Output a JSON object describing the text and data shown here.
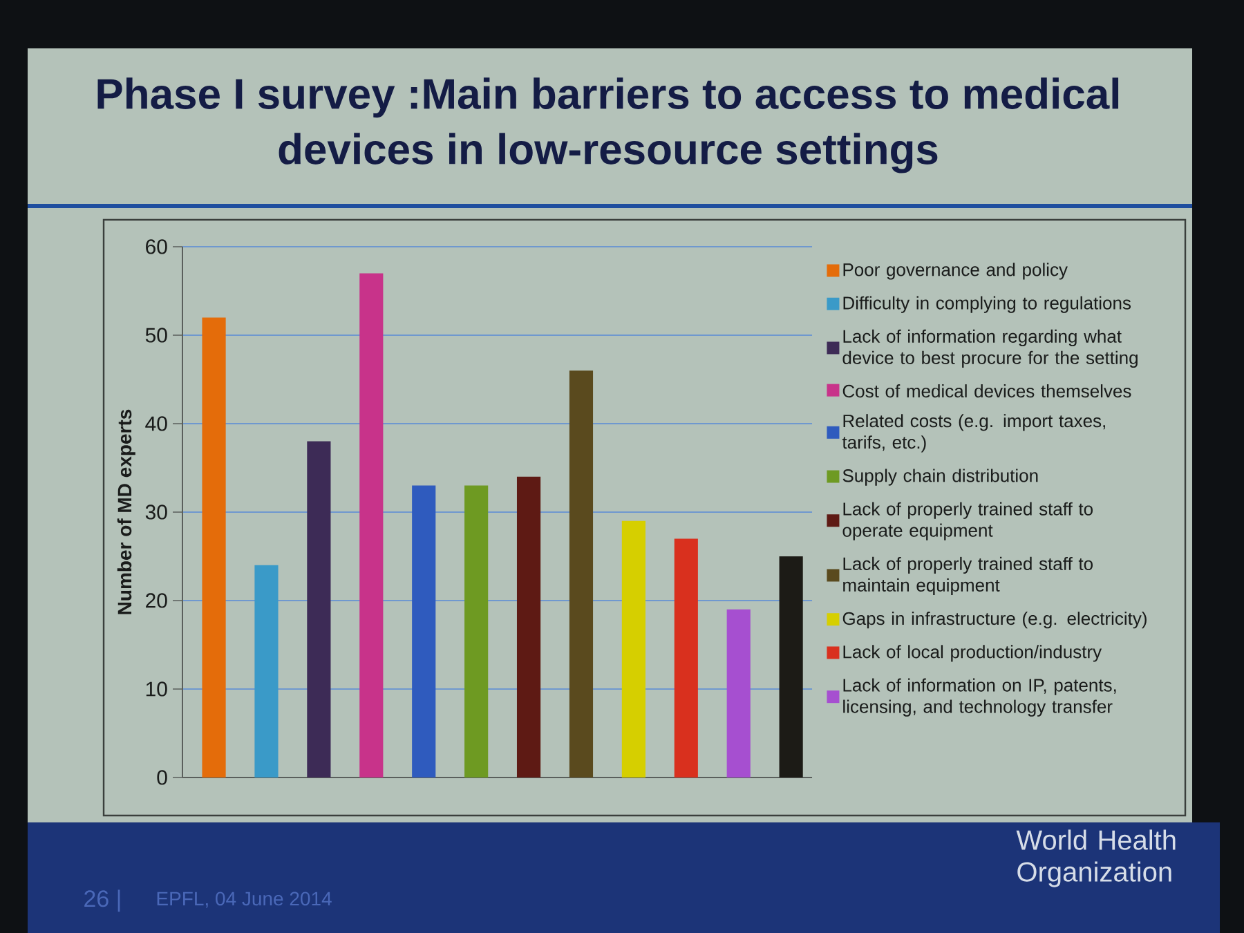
{
  "chart_data": {
    "type": "bar",
    "title": "Phase I survey :Main barriers to access to medical devices in low-resource settings",
    "ylabel": "Number of MD experts",
    "categories": [
      null,
      null,
      null,
      null,
      null,
      null,
      null,
      null,
      null,
      null,
      null,
      null
    ],
    "series": [
      {
        "name": "Poor governance and policy",
        "color": "#e46c0a",
        "values": [
          52,
          null,
          null,
          null,
          null,
          null,
          null,
          null,
          null,
          null,
          null,
          null
        ]
      },
      {
        "name": "Difficulty in complying to regulations",
        "color": "#3a9ac8",
        "values": [
          null,
          24,
          null,
          null,
          null,
          null,
          null,
          null,
          null,
          null,
          null,
          null
        ]
      },
      {
        "name": "Lack of information regarding what device to best procure for the setting",
        "color": "#3d2b56",
        "values": [
          null,
          null,
          38,
          null,
          null,
          null,
          null,
          null,
          null,
          null,
          null,
          null
        ]
      },
      {
        "name": "Cost of medical devices themselves",
        "color": "#c8338a",
        "values": [
          null,
          null,
          null,
          57,
          null,
          null,
          null,
          null,
          null,
          null,
          null,
          null
        ]
      },
      {
        "name": "Related costs (e.g. import taxes, tarifs, etc.)",
        "color": "#2f5bbe",
        "values": [
          null,
          null,
          null,
          null,
          33,
          null,
          null,
          null,
          null,
          null,
          null,
          null
        ]
      },
      {
        "name": "Supply chain distribution",
        "color": "#6e9a22",
        "values": [
          null,
          null,
          null,
          null,
          null,
          33,
          null,
          null,
          null,
          null,
          null,
          null
        ]
      },
      {
        "name": "Lack of properly trained staff to operate equipment",
        "color": "#5e1a14",
        "values": [
          null,
          null,
          null,
          null,
          null,
          null,
          34,
          null,
          null,
          null,
          null,
          null
        ]
      },
      {
        "name": "Lack of properly trained staff to maintain equipment",
        "color": "#5a4a1e",
        "values": [
          null,
          null,
          null,
          null,
          null,
          null,
          null,
          46,
          null,
          null,
          null,
          null
        ]
      },
      {
        "name": "Gaps in infrastructure (e.g. electricity)",
        "color": "#d6cf00",
        "values": [
          null,
          null,
          null,
          null,
          null,
          null,
          null,
          null,
          29,
          null,
          null,
          null
        ]
      },
      {
        "name": "Lack of local production/industry",
        "color": "#d9301e",
        "values": [
          null,
          null,
          null,
          null,
          null,
          null,
          null,
          null,
          null,
          27,
          null,
          null
        ]
      },
      {
        "name": "Lack of information on IP, patents, licensing, and technology transfer",
        "color": "#a64fd0",
        "values": [
          null,
          null,
          null,
          null,
          null,
          null,
          null,
          null,
          null,
          null,
          19,
          null
        ]
      },
      {
        "color": "#1c1b16",
        "values": [
          null,
          null,
          null,
          null,
          null,
          null,
          null,
          null,
          null,
          null,
          null,
          25
        ]
      }
    ],
    "ylim": [
      0,
      60
    ],
    "yticks": [
      0,
      10,
      20,
      30,
      40,
      50,
      60
    ],
    "grid": "y",
    "legend": "right",
    "annotations": [
      "26 |",
      "EPFL, 04 June 2014",
      "World Health Organization"
    ]
  }
}
